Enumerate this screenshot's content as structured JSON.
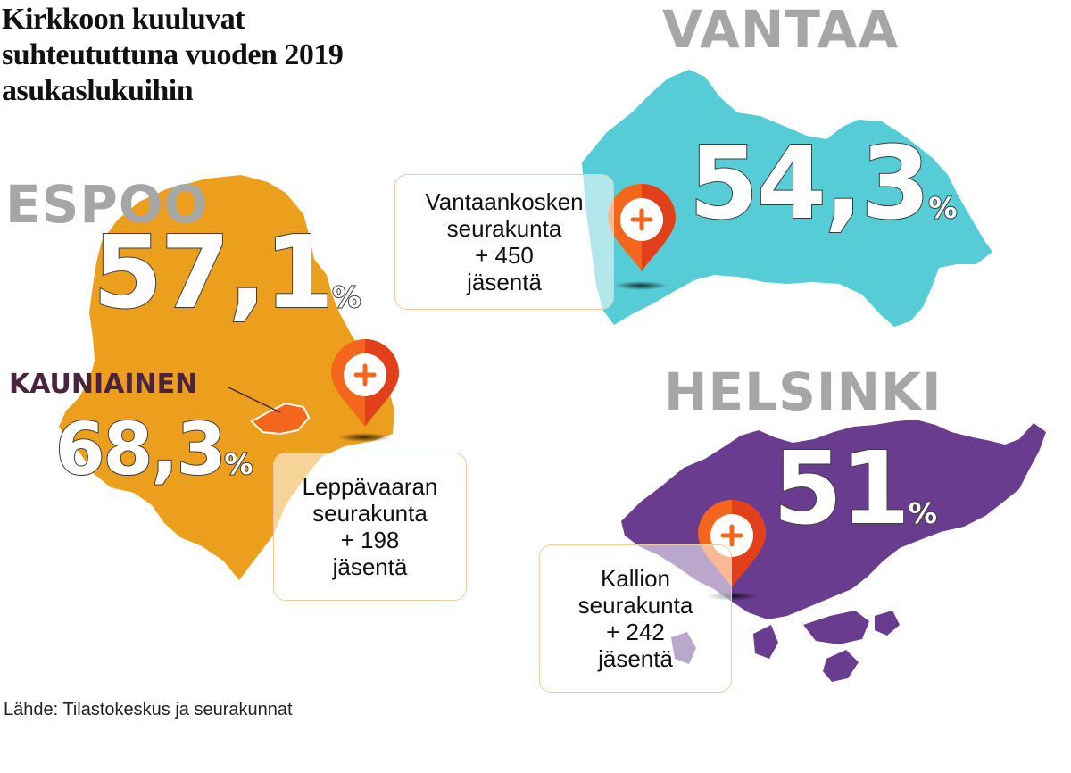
{
  "title": "Kirkkoon kuuluvat suhteututtuna vuoden 2019 asukaslukuihin",
  "colors": {
    "espoo": "#ec9f1c",
    "vantaa": "#56cdd6",
    "helsinki": "#6a3c8f",
    "pin": "#f3661c"
  },
  "espoo": {
    "name": "ESPOO",
    "value": "57,1",
    "unit": "%"
  },
  "kauniainen": {
    "name": "KAUNIAINEN",
    "value": "68,3",
    "unit": "%"
  },
  "vantaa": {
    "name": "VANTAA",
    "value": "54,3",
    "unit": "%"
  },
  "helsinki": {
    "name": "HELSINKI",
    "value": "51",
    "unit": "%"
  },
  "callouts": {
    "vantaa": [
      "Vantaankosken",
      "seurakunta",
      "+ 450",
      "jäsentä"
    ],
    "leppavaara": [
      "Leppävaaran",
      "seurakunta",
      "+ 198",
      "jäsentä"
    ],
    "kallio": [
      "Kallion",
      "seurakunta",
      "+ 242",
      "jäsentä"
    ]
  },
  "source": "Lähde: Tilastokeskus ja seurakunnat"
}
